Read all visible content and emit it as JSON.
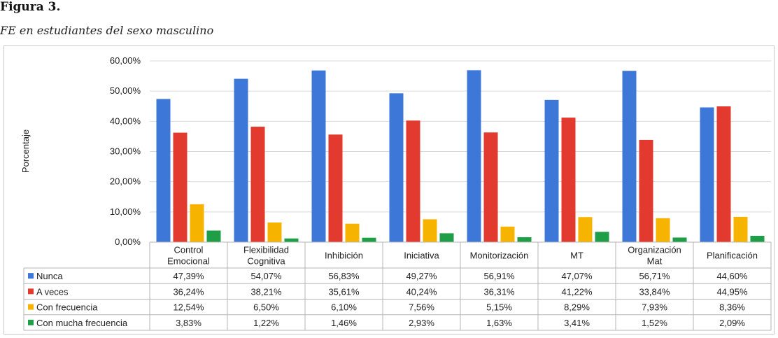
{
  "figure": {
    "label": "Figura 3.",
    "title": "FE en estudiantes del sexo masculino"
  },
  "chart_data": {
    "type": "bar",
    "ylabel": "Porcentaje",
    "ylim": [
      0,
      60
    ],
    "yticks": [
      "0,00%",
      "10,00%",
      "20,00%",
      "30,00%",
      "40,00%",
      "50,00%",
      "60,00%"
    ],
    "grid": true,
    "legend": "data-table-left",
    "categories": [
      [
        "Control",
        "Emocional"
      ],
      [
        "Flexibilidad",
        "Cognitiva"
      ],
      [
        "Inhibición"
      ],
      [
        "Iniciativa"
      ],
      [
        "Monitorización"
      ],
      [
        "MT"
      ],
      [
        "Organización",
        "Mat"
      ],
      [
        "Planificación"
      ]
    ],
    "series": [
      {
        "name": "Nunca",
        "color": "#3d78d8",
        "values": [
          47.39,
          54.07,
          56.83,
          49.27,
          56.91,
          47.07,
          56.71,
          44.6
        ],
        "labels": [
          "47,39%",
          "54,07%",
          "56,83%",
          "49,27%",
          "56,91%",
          "47,07%",
          "56,71%",
          "44,60%"
        ]
      },
      {
        "name": "A veces",
        "color": "#e23a2e",
        "values": [
          36.24,
          38.21,
          35.61,
          40.24,
          36.31,
          41.22,
          33.84,
          44.95
        ],
        "labels": [
          "36,24%",
          "38,21%",
          "35,61%",
          "40,24%",
          "36,31%",
          "41,22%",
          "33,84%",
          "44,95%"
        ]
      },
      {
        "name": "Con frecuencia",
        "color": "#f6b400",
        "values": [
          12.54,
          6.5,
          6.1,
          7.56,
          5.15,
          8.29,
          7.93,
          8.36
        ],
        "labels": [
          "12,54%",
          "6,50%",
          "6,10%",
          "7,56%",
          "5,15%",
          "8,29%",
          "7,93%",
          "8,36%"
        ]
      },
      {
        "name": "Con mucha frecuencia",
        "color": "#1f9e48",
        "values": [
          3.83,
          1.22,
          1.46,
          2.93,
          1.63,
          3.41,
          1.52,
          2.09
        ],
        "labels": [
          "3,83%",
          "1,22%",
          "1,46%",
          "2,93%",
          "1,63%",
          "3,41%",
          "1,52%",
          "2,09%"
        ]
      }
    ]
  }
}
